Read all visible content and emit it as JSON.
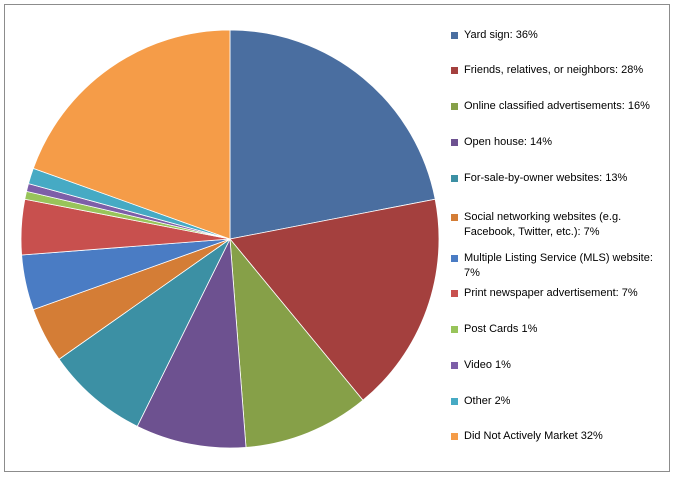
{
  "chart_data": {
    "type": "pie",
    "title": "",
    "start_angle_deg": 0,
    "direction": "clockwise",
    "legend_position": "right",
    "slices": [
      {
        "label": "Yard sign: 36%",
        "value": 36,
        "color": "#4a6ea0"
      },
      {
        "label": "Friends, relatives, or neighbors: 28%",
        "value": 28,
        "color": "#a4403e"
      },
      {
        "label": "Online classified advertisements: 16%",
        "value": 16,
        "color": "#86a048"
      },
      {
        "label": "Open house: 14%",
        "value": 14,
        "color": "#6d5190"
      },
      {
        "label": "For-sale-by-owner websites: 13%",
        "value": 13,
        "color": "#3c90a4"
      },
      {
        "label": "Social networking websites (e.g. Facebook, Twitter, etc.): 7%",
        "value": 7,
        "color": "#d47d36"
      },
      {
        "label": "Multiple Listing Service (MLS) website: 7%",
        "value": 7,
        "color": "#4a7cc4"
      },
      {
        "label": "Print newspaper advertisement: 7%",
        "value": 7,
        "color": "#c8504e"
      },
      {
        "label": "Post Cards 1%",
        "value": 1,
        "color": "#98c45a"
      },
      {
        "label": "Video 1%",
        "value": 1,
        "color": "#7d5ea8"
      },
      {
        "label": "Other  2%",
        "value": 2,
        "color": "#46aac4"
      },
      {
        "label": "Did Not Actively Market  32%",
        "value": 32,
        "color": "#f59c48"
      }
    ]
  }
}
